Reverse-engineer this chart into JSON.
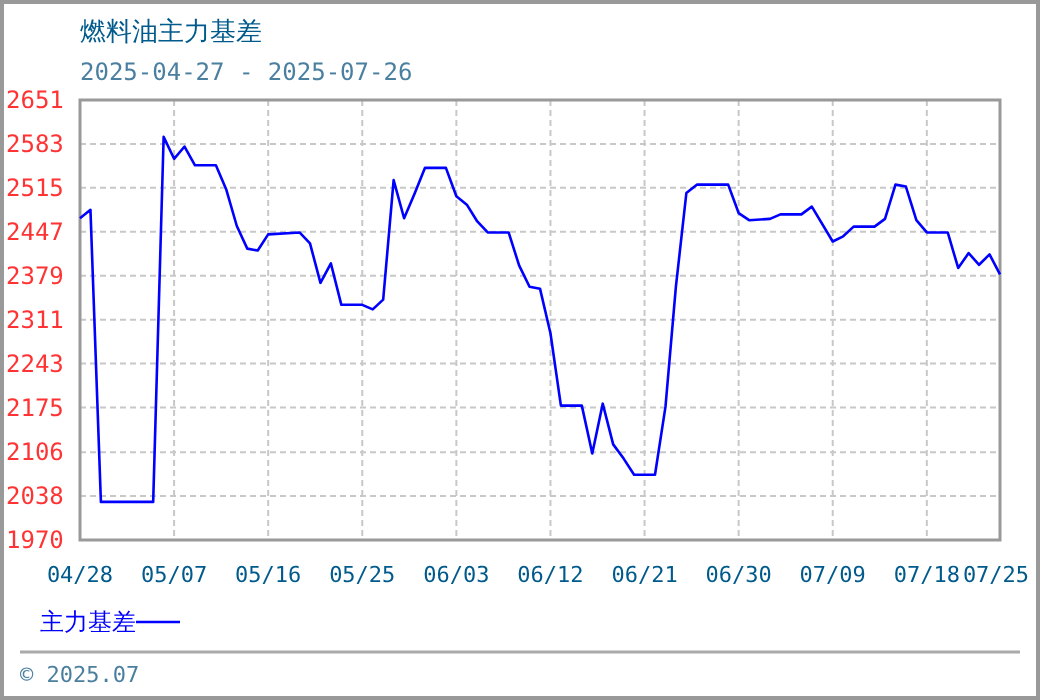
{
  "chart_data": {
    "type": "line",
    "title": "燃料油主力基差",
    "subtitle": "2025-04-27 - 2025-07-26",
    "x": [
      "2025-04-28",
      "2025-04-29",
      "2025-04-30",
      "2025-05-05",
      "2025-05-06",
      "2025-05-07",
      "2025-05-08",
      "2025-05-09",
      "2025-05-11",
      "2025-05-12",
      "2025-05-13",
      "2025-05-14",
      "2025-05-15",
      "2025-05-16",
      "2025-05-19",
      "2025-05-20",
      "2025-05-21",
      "2025-05-22",
      "2025-05-23",
      "2025-05-25",
      "2025-05-26",
      "2025-05-27",
      "2025-05-28",
      "2025-05-29",
      "2025-05-30",
      "2025-05-31",
      "2025-06-02",
      "2025-06-03",
      "2025-06-04",
      "2025-06-05",
      "2025-06-06",
      "2025-06-08",
      "2025-06-09",
      "2025-06-10",
      "2025-06-11",
      "2025-06-12",
      "2025-06-13",
      "2025-06-15",
      "2025-06-16",
      "2025-06-17",
      "2025-06-18",
      "2025-06-19",
      "2025-06-20",
      "2025-06-22",
      "2025-06-23",
      "2025-06-24",
      "2025-06-25",
      "2025-06-26",
      "2025-06-29",
      "2025-06-30",
      "2025-07-01",
      "2025-07-03",
      "2025-07-04",
      "2025-07-06",
      "2025-07-07",
      "2025-07-09",
      "2025-07-10",
      "2025-07-11",
      "2025-07-13",
      "2025-07-14",
      "2025-07-15",
      "2025-07-16",
      "2025-07-17",
      "2025-07-18",
      "2025-07-20",
      "2025-07-21",
      "2025-07-22",
      "2025-07-23",
      "2025-07-24",
      "2025-07-25"
    ],
    "series": [
      {
        "name": "主力基差",
        "color": "#0000ff",
        "values": [
          2468,
          2481,
          2029,
          2029,
          2594,
          2560,
          2579,
          2550,
          2550,
          2512,
          2456,
          2421,
          2418,
          2443,
          2446,
          2429,
          2368,
          2398,
          2334,
          2334,
          2327,
          2342,
          2527,
          2468,
          2506,
          2546,
          2546,
          2502,
          2489,
          2463,
          2446,
          2446,
          2395,
          2362,
          2359,
          2290,
          2178,
          2178,
          2104,
          2181,
          2118,
          2096,
          2071,
          2071,
          2176,
          2362,
          2507,
          2520,
          2520,
          2476,
          2465,
          2467,
          2474,
          2474,
          2486,
          2432,
          2440,
          2455,
          2455,
          2467,
          2520,
          2517,
          2465,
          2446,
          2446,
          2391,
          2414,
          2396,
          2412,
          2381
        ]
      }
    ],
    "xlim": [
      "2025-04-28",
      "2025-07-25"
    ],
    "xticks": [
      {
        "value": "2025-04-28",
        "label": "04/28"
      },
      {
        "value": "2025-05-07",
        "label": "05/07"
      },
      {
        "value": "2025-05-16",
        "label": "05/16"
      },
      {
        "value": "2025-05-25",
        "label": "05/25"
      },
      {
        "value": "2025-06-03",
        "label": "06/03"
      },
      {
        "value": "2025-06-12",
        "label": "06/12"
      },
      {
        "value": "2025-06-21",
        "label": "06/21"
      },
      {
        "value": "2025-06-30",
        "label": "06/30"
      },
      {
        "value": "2025-07-09",
        "label": "07/09"
      },
      {
        "value": "2025-07-18",
        "label": "07/18"
      },
      {
        "value": "2025-07-25",
        "label": "07/25"
      }
    ],
    "ylim": [
      1970,
      2651
    ],
    "yticks": [
      1970,
      2038,
      2106,
      2175,
      2243,
      2311,
      2379,
      2447,
      2515,
      2583,
      2651
    ],
    "grid": true,
    "legend": "bottom left",
    "annotations": [
      "© 2025.07"
    ]
  }
}
